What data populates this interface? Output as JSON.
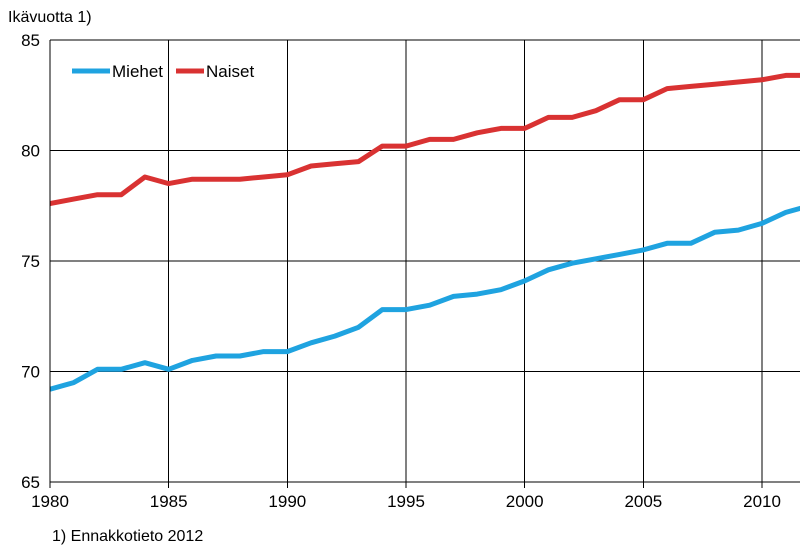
{
  "chart_data": {
    "type": "line",
    "ylabel": "Ikävuotta 1)",
    "footnote": "1) Ennakkotieto 2012",
    "xlim": [
      1980,
      2011.6
    ],
    "ylim": [
      65,
      85
    ],
    "xticks": [
      1980,
      1985,
      1990,
      1995,
      2000,
      2005,
      2010
    ],
    "yticks": [
      65,
      70,
      75,
      80,
      85
    ],
    "grid": true,
    "legend_position": "top-left",
    "x": [
      1980,
      1981,
      1982,
      1983,
      1984,
      1985,
      1986,
      1987,
      1988,
      1989,
      1990,
      1991,
      1992,
      1993,
      1994,
      1995,
      1996,
      1997,
      1998,
      1999,
      2000,
      2001,
      2002,
      2003,
      2004,
      2005,
      2006,
      2007,
      2008,
      2009,
      2010,
      2011,
      2012
    ],
    "series": [
      {
        "name": "Miehet",
        "color": "#1fa3e0",
        "values": [
          69.2,
          69.5,
          70.1,
          70.1,
          70.4,
          70.1,
          70.5,
          70.7,
          70.7,
          70.9,
          70.9,
          71.3,
          71.6,
          72.0,
          72.8,
          72.8,
          73.0,
          73.4,
          73.5,
          73.7,
          74.1,
          74.6,
          74.9,
          75.1,
          75.3,
          75.5,
          75.8,
          75.8,
          76.3,
          76.4,
          76.7,
          77.2,
          77.5
        ]
      },
      {
        "name": "Naiset",
        "color": "#d93232",
        "values": [
          77.6,
          77.8,
          78.0,
          78.0,
          78.8,
          78.5,
          78.7,
          78.7,
          78.7,
          78.8,
          78.9,
          79.3,
          79.4,
          79.5,
          80.2,
          80.2,
          80.5,
          80.5,
          80.8,
          81.0,
          81.0,
          81.5,
          81.5,
          81.8,
          82.3,
          82.3,
          82.8,
          82.9,
          83.0,
          83.1,
          83.2,
          83.4,
          83.4
        ]
      }
    ]
  }
}
